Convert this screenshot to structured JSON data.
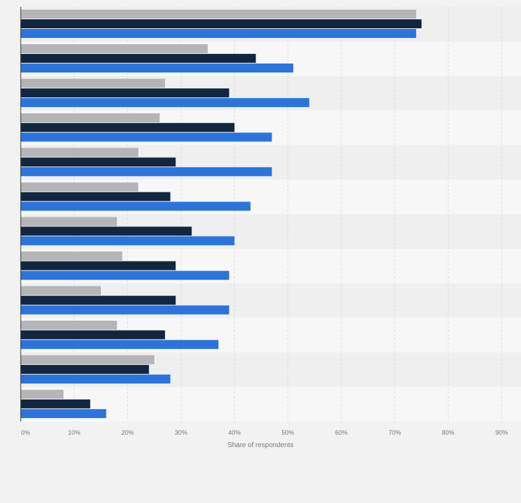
{
  "chart_data": {
    "type": "bar",
    "orientation": "horizontal",
    "title": "",
    "xlabel": "Share of respondents",
    "ylabel": "",
    "xlim": [
      0,
      90
    ],
    "x_ticks": [
      "0%",
      "10%",
      "20%",
      "30%",
      "40%",
      "50%",
      "60%",
      "70%",
      "80%",
      "90%"
    ],
    "grid": true,
    "legend": "none",
    "categories": [
      "",
      "",
      "",
      "",
      "",
      "",
      "",
      "",
      "",
      "",
      "",
      ""
    ],
    "series": [
      {
        "color": "#b5b5b7",
        "values": [
          74,
          35,
          27,
          26,
          22,
          22,
          18,
          19,
          15,
          18,
          25,
          8
        ]
      },
      {
        "color": "#13263f",
        "values": [
          75,
          44,
          39,
          40,
          29,
          28,
          32,
          29,
          29,
          27,
          24,
          13
        ]
      },
      {
        "color": "#2a74dc",
        "values": [
          74,
          51,
          54,
          47,
          47,
          43,
          40,
          39,
          39,
          37,
          28,
          16
        ]
      }
    ],
    "colors": {
      "background": "#f2f2f2",
      "band_light": "#f7f7f7",
      "band_dark": "#efefef",
      "gridline": "#dcdcdc",
      "axis": "#333333",
      "tick_text": "#777777"
    }
  }
}
